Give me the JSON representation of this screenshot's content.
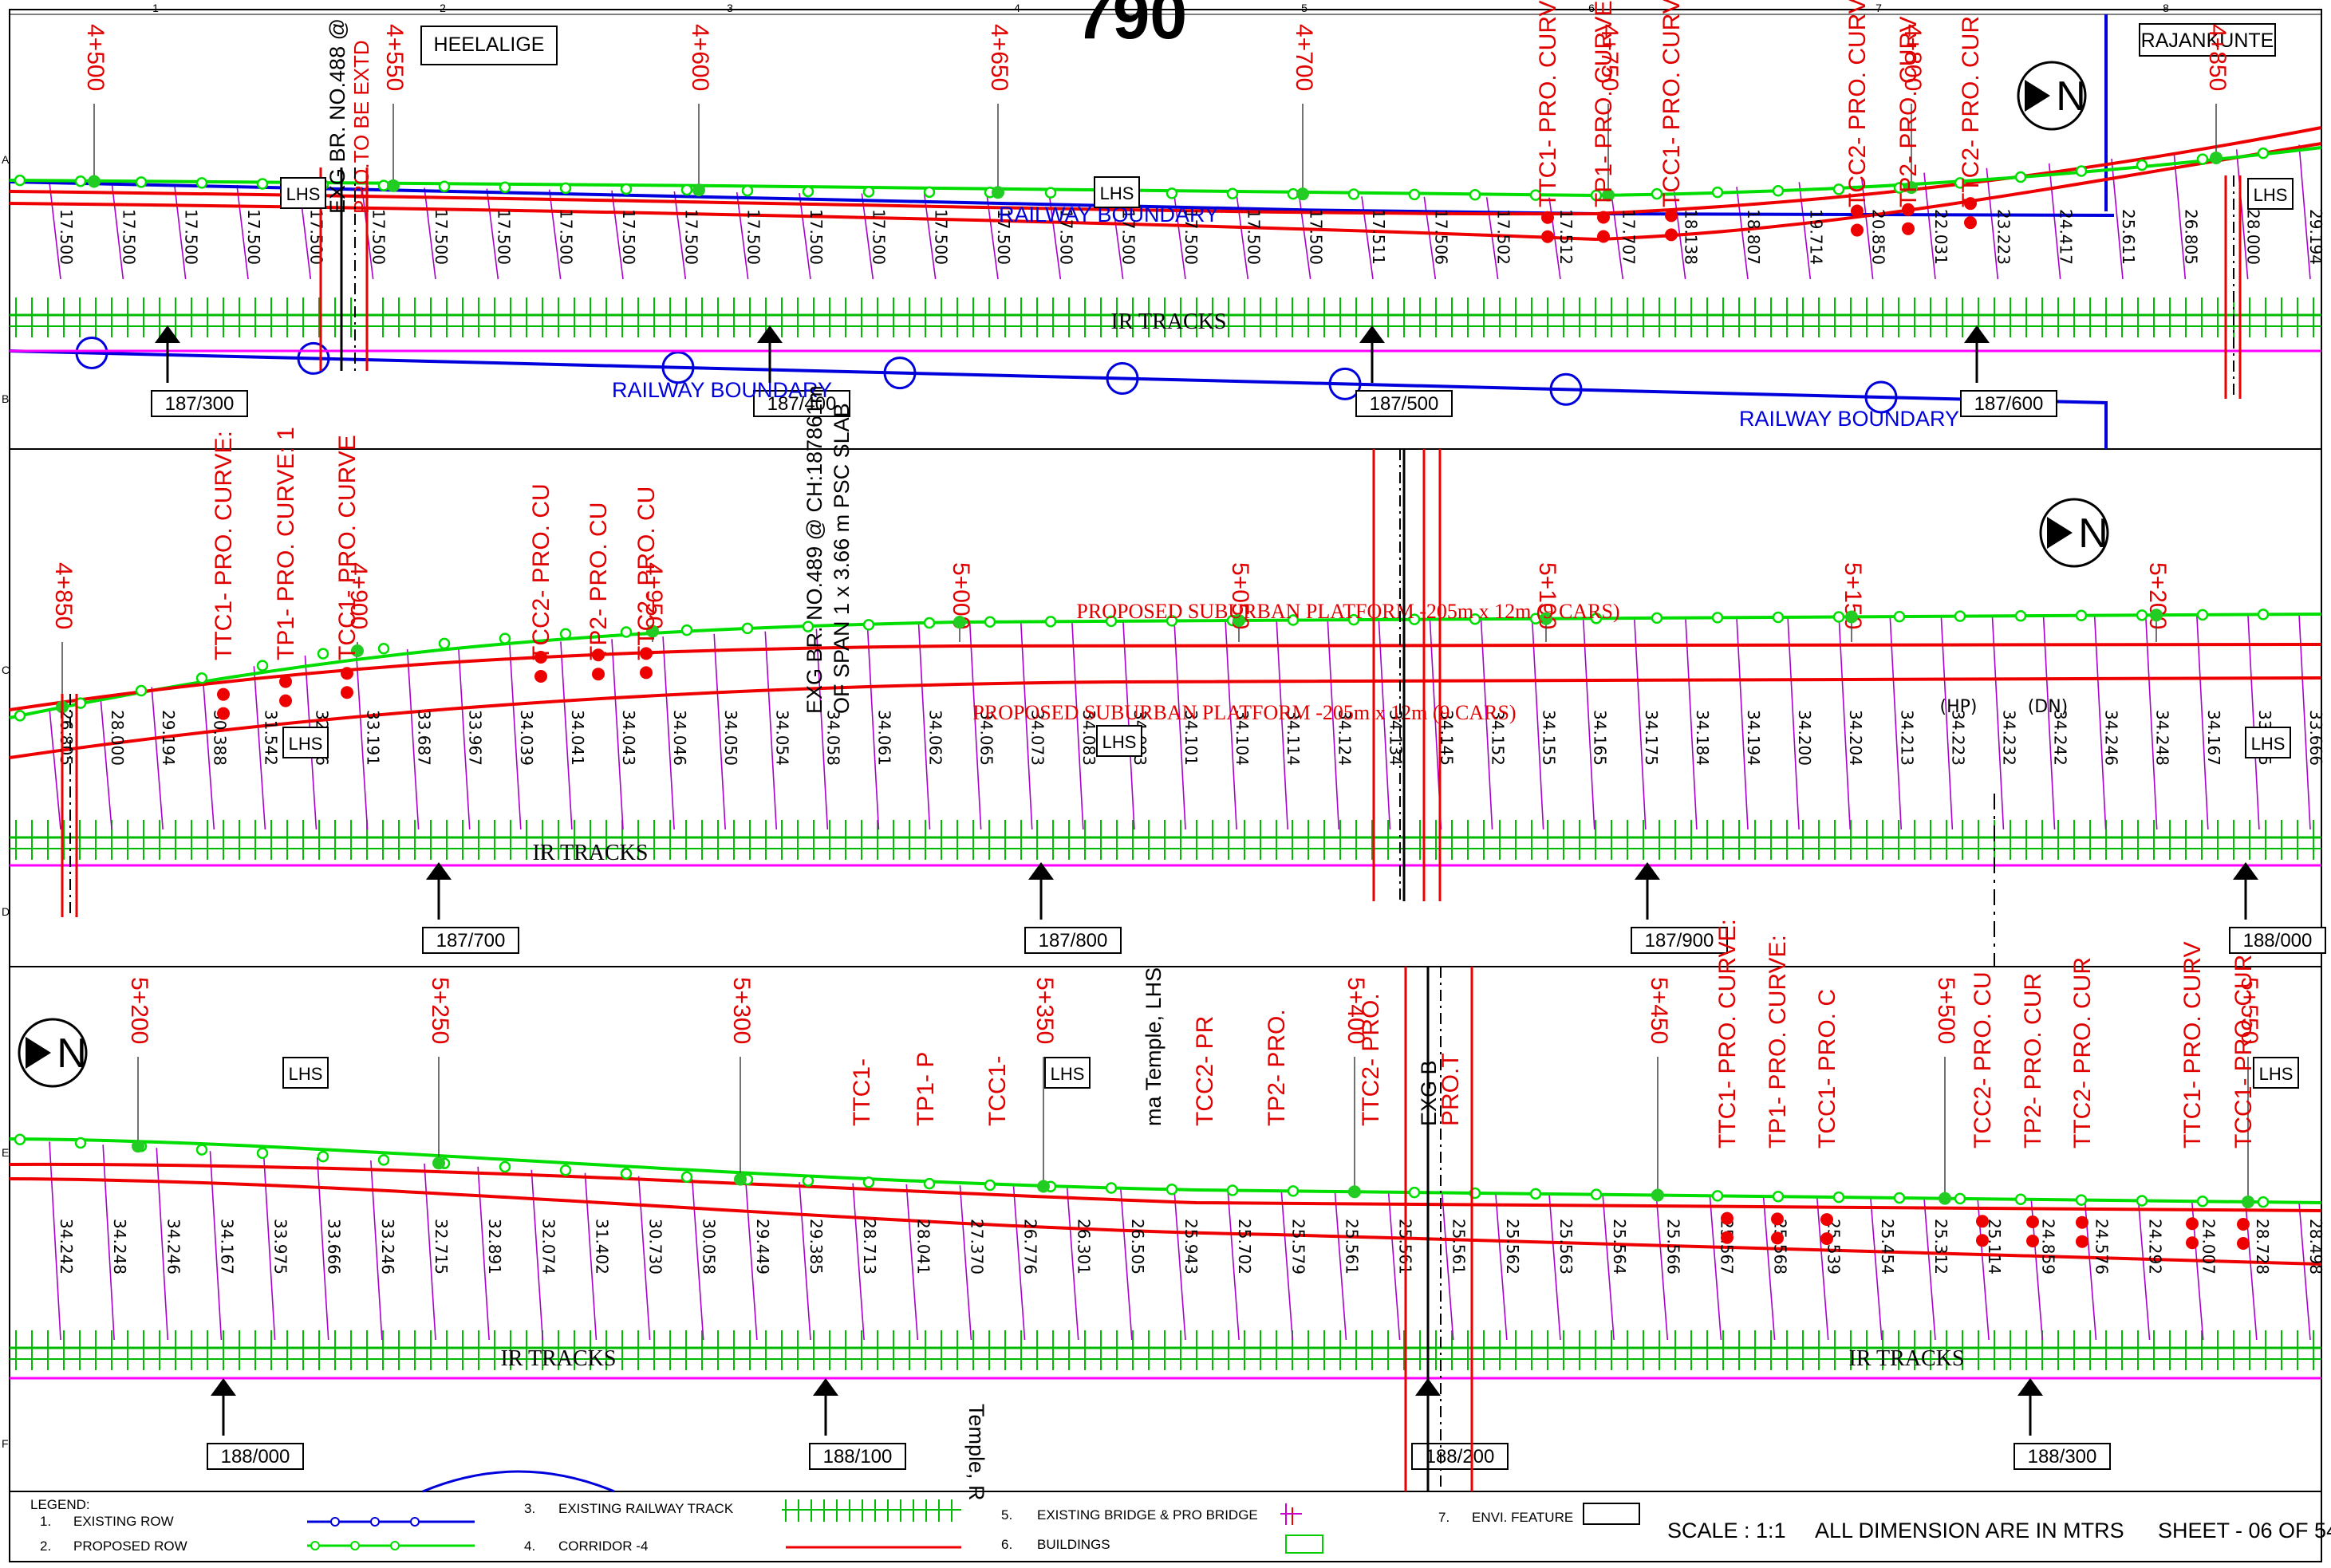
{
  "sheet": {
    "number": "790",
    "scale": "SCALE : 1:1",
    "dimension_note": "ALL DIMENSION ARE IN MTRS",
    "sheet_label": "SHEET - 06 OF 54",
    "grid_columns": [
      "1",
      "2",
      "3",
      "4",
      "5",
      "6",
      "7",
      "8"
    ],
    "grid_rows": [
      "A",
      "B",
      "C",
      "D",
      "E",
      "F"
    ]
  },
  "places": {
    "start": "HEELALIGE",
    "end": "RAJANKUNTE"
  },
  "common": {
    "north": "N",
    "lhs": "LHS",
    "ir_tracks": "IR TRACKS",
    "railway_boundary": "RAILWAY BOUNDARY"
  },
  "strip1": {
    "chainages": [
      "4+500",
      "4+550",
      "4+600",
      "4+650",
      "4+700",
      "4+750",
      "4+800",
      "4+850"
    ],
    "curves": [
      "TTC1- PRO. CURV",
      "TP1- PRO. CURVE:",
      "TCC1- PRO. CURV",
      "TCC2- PRO. CURV",
      "TP2- PRO. CURV",
      "TTC2- PRO. CUR"
    ],
    "bridge": [
      "EXG BR. NO.488 @",
      "PRO.TO BE EXTD"
    ],
    "levels": [
      "17.500",
      "17.500",
      "17.500",
      "17.500",
      "17.500",
      "17.500",
      "17.500",
      "17.500",
      "17.500",
      "17.500",
      "17.500",
      "17.500",
      "17.500",
      "17.500",
      "17.500",
      "17.500",
      "17.500",
      "17.500",
      "17.500",
      "17.500",
      "17.500",
      "17.511",
      "17.506",
      "17.502",
      "17.512",
      "17.707",
      "18.138",
      "18.807",
      "19.714",
      "20.850",
      "22.031",
      "23.223",
      "24.417",
      "25.611",
      "26.805",
      "28.000",
      "29.194"
    ],
    "km": [
      "187/300",
      "187/400",
      "187/500",
      "187/600"
    ]
  },
  "strip2": {
    "chainages": [
      "4+850",
      "4+900",
      "4+950",
      "5+000",
      "5+050",
      "5+100",
      "5+150",
      "5+200"
    ],
    "curves": [
      "TTC1- PRO. CURVE:",
      "TP1- PRO. CURVE: 1",
      "TCC1- PRO. CURVE",
      "TCC2- PRO. CU",
      "TP2- PRO. CU",
      "TTC2- PRO. CU"
    ],
    "bridge": [
      "EXG BR. NO.489 @ CH:187861m",
      "OF SPAN 1 x 3.66 m PSC SLAB"
    ],
    "platform_top": "PROPOSED SUBURBAN PLATFORM -205m x 12m (9 CARS)",
    "platform_bottom": "PROPOSED SUBURBAN PLATFORM -205m x 12m (9 CARS)",
    "levels": [
      "26.805",
      "28.000",
      "29.194",
      "30.388",
      "31.542",
      "32.476",
      "33.191",
      "33.687",
      "33.967",
      "34.039",
      "34.041",
      "34.043",
      "34.046",
      "34.050",
      "34.054",
      "34.058",
      "34.061",
      "34.062",
      "34.065",
      "34.073",
      "34.083",
      "34.093",
      "34.101",
      "34.104",
      "34.114",
      "34.124",
      "34.134",
      "34.145",
      "34.152",
      "34.155",
      "34.165",
      "34.175",
      "34.184",
      "34.194",
      "34.200",
      "34.204",
      "34.213",
      "34.223",
      "34.232",
      "34.242",
      "34.246",
      "34.248",
      "34.167",
      "33.975",
      "33.666"
    ],
    "hp": "(HP)",
    "dn": "(DN)",
    "km": [
      "187/700",
      "187/800",
      "187/900",
      "188/000"
    ]
  },
  "strip3": {
    "chainages": [
      "5+200",
      "5+250",
      "5+300",
      "5+350",
      "5+400",
      "5+450",
      "5+500",
      "5+550"
    ],
    "curves": [
      "TTC1- PRO. CURVE:",
      "TP1- PRO. CURVE:",
      "TCC1- PRO. C",
      "TCC2- PRO. CU",
      "TP2- PRO. CUR",
      "TTC2- PRO. CUR",
      "TTC1- PRO. CURV",
      "TCC1- PRO. CUR"
    ],
    "fragments": [
      "TCC2- PR",
      "TP2- PRO.",
      "TTC2- PRO.",
      "TTC1-",
      "TP1- P",
      "TCC1-",
      "ma Temple, LHS",
      "Temple, R",
      "EXG B",
      "PRO.T"
    ],
    "levels": [
      "34.242",
      "34.248",
      "34.246",
      "34.167",
      "33.975",
      "33.666",
      "33.246",
      "32.715",
      "32.891",
      "32.074",
      "31.402",
      "30.730",
      "30.058",
      "29.449",
      "29.385",
      "28.713",
      "28.041",
      "27.370",
      "26.776",
      "26.301",
      "26.505",
      "25.943",
      "25.702",
      "25.579",
      "25.561",
      "25.561",
      "25.561",
      "25.562",
      "25.563",
      "25.564",
      "25.566",
      "25.567",
      "25.568",
      "25.539",
      "25.454",
      "25.312",
      "25.114",
      "24.859",
      "24.576",
      "24.292",
      "24.007",
      "28.728",
      "28.498"
    ],
    "km": [
      "188/000",
      "188/100",
      "188/200",
      "188/300"
    ]
  },
  "legend": {
    "title": "LEGEND:",
    "items": [
      {
        "n": "1.",
        "label": "EXISTING ROW"
      },
      {
        "n": "2.",
        "label": "PROPOSED ROW"
      },
      {
        "n": "3.",
        "label": "EXISTING RAILWAY TRACK"
      },
      {
        "n": "4.",
        "label": "CORRIDOR -4"
      },
      {
        "n": "5.",
        "label": "EXISTING BRIDGE & PRO BRIDGE"
      },
      {
        "n": "6.",
        "label": "BUILDINGS"
      },
      {
        "n": "7.",
        "label": "ENVI. FEATURE"
      }
    ]
  },
  "colors": {
    "existing_row": "#0000dd",
    "proposed_row": "#00dd00",
    "corridor": "#ee0000",
    "tracks": "#00bb00",
    "ir_boundary": "#ff00ff",
    "offsets": "#aa00cc"
  }
}
